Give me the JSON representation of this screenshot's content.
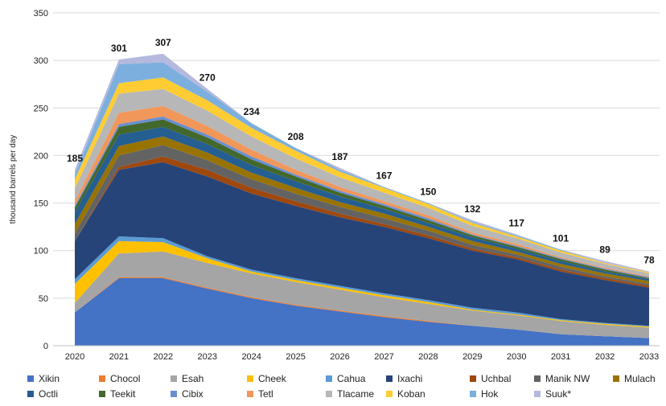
{
  "chart_data": {
    "type": "area",
    "stacked": true,
    "title": "",
    "xlabel": "",
    "ylabel": "thousand barrels per day",
    "ylim": [
      0,
      350
    ],
    "yticks": [
      0,
      50,
      100,
      150,
      200,
      250,
      300,
      350
    ],
    "grid": true,
    "legend_position": "bottom",
    "x": [
      "2020",
      "2021",
      "2022",
      "2023",
      "2024",
      "2025",
      "2026",
      "2027",
      "2028",
      "2029",
      "2030",
      "2031",
      "2032",
      "2033"
    ],
    "totals": [
      185,
      301,
      307,
      270,
      234,
      208,
      187,
      167,
      150,
      132,
      117,
      101,
      89,
      78
    ],
    "series": [
      {
        "name": "Xikin",
        "color": "#4472C4",
        "values": [
          35,
          71,
          71,
          60,
          50,
          42,
          36,
          30,
          25,
          21,
          17,
          12,
          10,
          8
        ]
      },
      {
        "name": "Chocol",
        "color": "#ED7D31",
        "values": [
          0,
          1,
          1,
          1,
          1,
          1,
          1,
          1,
          1,
          0,
          0,
          0,
          0,
          0
        ]
      },
      {
        "name": "Esah",
        "color": "#A5A5A5",
        "values": [
          10,
          25,
          27,
          26,
          25,
          24,
          22,
          20,
          18,
          16,
          15,
          14,
          12,
          11
        ]
      },
      {
        "name": "Cheek",
        "color": "#FFC000",
        "values": [
          20,
          13,
          10,
          5,
          2,
          2,
          2,
          2,
          2,
          1,
          1,
          1,
          1,
          1
        ]
      },
      {
        "name": "Cahua",
        "color": "#5B9BD5",
        "values": [
          5,
          5,
          4,
          2,
          2,
          2,
          2,
          2,
          2,
          2,
          2,
          1,
          1,
          1
        ]
      },
      {
        "name": "Ixachi",
        "color": "#264478",
        "values": [
          40,
          70,
          80,
          84,
          80,
          76,
          72,
          70,
          65,
          60,
          56,
          50,
          45,
          40
        ]
      },
      {
        "name": "Uchbal",
        "color": "#9E480E",
        "values": [
          0,
          3,
          6,
          7,
          6,
          5,
          4,
          3,
          3,
          2,
          2,
          2,
          2,
          2
        ]
      },
      {
        "name": "Manik NW",
        "color": "#636363",
        "values": [
          8,
          12,
          12,
          10,
          9,
          8,
          7,
          6,
          5,
          4,
          3,
          3,
          2,
          2
        ]
      },
      {
        "name": "Mulach",
        "color": "#997300",
        "values": [
          10,
          10,
          9,
          8,
          7,
          6,
          5,
          5,
          4,
          4,
          3,
          3,
          3,
          3
        ]
      },
      {
        "name": "Octli",
        "color": "#255E91",
        "values": [
          12,
          12,
          10,
          9,
          8,
          7,
          6,
          5,
          4,
          4,
          3,
          3,
          2,
          2
        ]
      },
      {
        "name": "Teekit",
        "color": "#43682B",
        "values": [
          5,
          8,
          8,
          7,
          6,
          5,
          4,
          3,
          3,
          2,
          2,
          2,
          2,
          1
        ]
      },
      {
        "name": "Cibix",
        "color": "#698ED0",
        "values": [
          2,
          3,
          3,
          3,
          3,
          2,
          2,
          2,
          2,
          1,
          1,
          1,
          1,
          1
        ]
      },
      {
        "name": "Tetl",
        "color": "#F1975A",
        "values": [
          5,
          12,
          11,
          9,
          7,
          5,
          4,
          3,
          3,
          2,
          2,
          1,
          1,
          1
        ]
      },
      {
        "name": "Tlacame",
        "color": "#B7B7B7",
        "values": [
          13,
          20,
          18,
          16,
          14,
          12,
          10,
          9,
          8,
          7,
          6,
          5,
          4,
          3
        ]
      },
      {
        "name": "Koban",
        "color": "#FFCD33",
        "values": [
          10,
          11,
          12,
          11,
          9,
          8,
          6,
          5,
          4,
          3,
          2,
          2,
          1,
          1
        ]
      },
      {
        "name": "Hok",
        "color": "#7CAFDD",
        "values": [
          5,
          20,
          16,
          9,
          5,
          3,
          2,
          1,
          1,
          1,
          1,
          1,
          0,
          0
        ]
      },
      {
        "name": "Suuk*",
        "color": "#B4B9DD",
        "values": [
          5,
          5,
          9,
          3,
          0,
          0,
          2,
          0,
          0,
          2,
          1,
          0,
          2,
          1
        ]
      }
    ]
  }
}
